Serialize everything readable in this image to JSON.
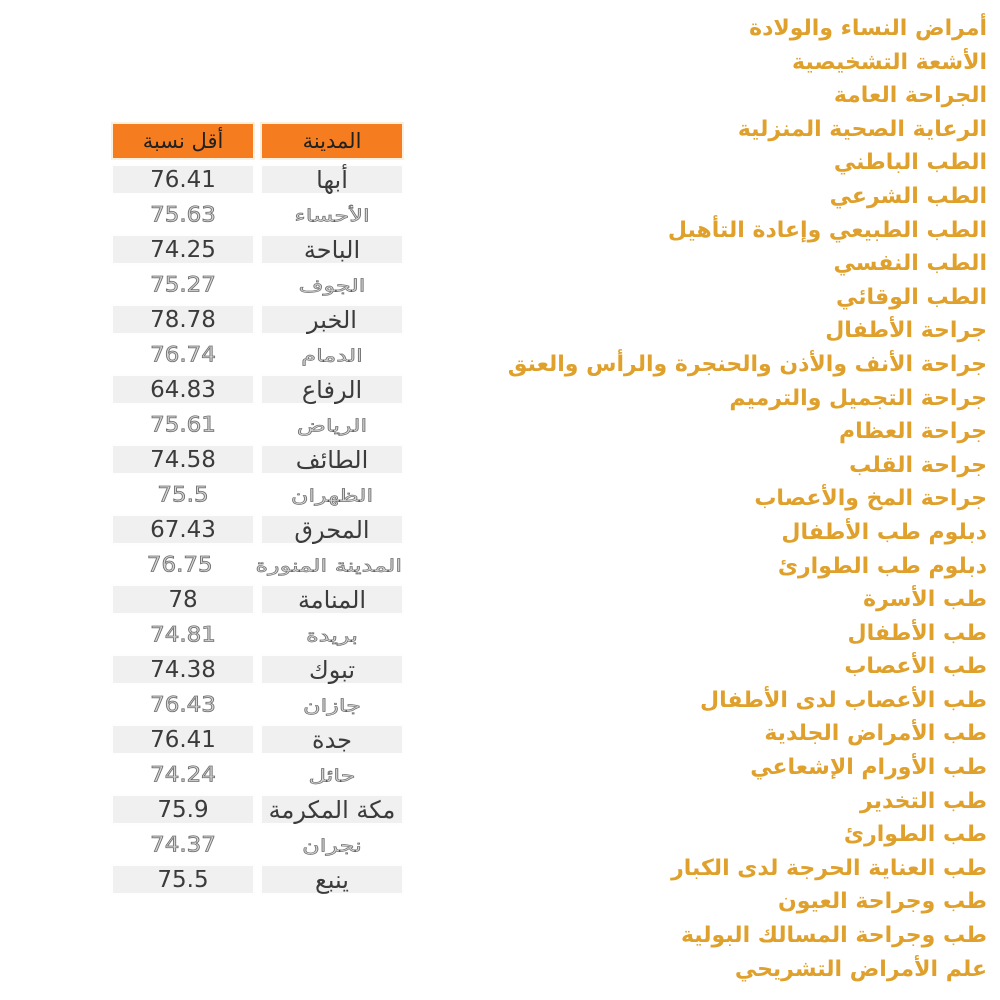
{
  "colors": {
    "header_orange": "#F57D1F",
    "header_border": "#FBEFDD",
    "row_fill": "#F0F0F0",
    "row_text": "#3B3B3B",
    "specialty_amber": "#DFA02C"
  },
  "table": {
    "headers": {
      "city": "المدينة",
      "value": "أقل نسبة"
    },
    "rows": [
      {
        "city": "أبها",
        "value": "76.41",
        "muted": false
      },
      {
        "city": "الأحساء",
        "value": "75.63",
        "muted": true
      },
      {
        "city": "الباحة",
        "value": "74.25",
        "muted": false
      },
      {
        "city": "الجوف",
        "value": "75.27",
        "muted": true
      },
      {
        "city": "الخبر",
        "value": "78.78",
        "muted": false
      },
      {
        "city": "الدمام",
        "value": "76.74",
        "muted": true
      },
      {
        "city": "الرفاع",
        "value": "64.83",
        "muted": false
      },
      {
        "city": "الرياض",
        "value": "75.61",
        "muted": true
      },
      {
        "city": "الطائف",
        "value": "74.58",
        "muted": false
      },
      {
        "city": "الظهران",
        "value": "75.5",
        "muted": true
      },
      {
        "city": "المحرق",
        "value": "67.43",
        "muted": false
      },
      {
        "city": "المدينة المنورة",
        "value": "76.75",
        "muted": true
      },
      {
        "city": "المنامة",
        "value": "78",
        "muted": false
      },
      {
        "city": "بريدة",
        "value": "74.81",
        "muted": true
      },
      {
        "city": "تبوك",
        "value": "74.38",
        "muted": false
      },
      {
        "city": "جازان",
        "value": "76.43",
        "muted": true
      },
      {
        "city": "جدة",
        "value": "76.41",
        "muted": false
      },
      {
        "city": "حائل",
        "value": "74.24",
        "muted": true
      },
      {
        "city": "مكة المكرمة",
        "value": "75.9",
        "muted": false
      },
      {
        "city": "نجران",
        "value": "74.37",
        "muted": true
      },
      {
        "city": "ينبع",
        "value": "75.5",
        "muted": false
      }
    ]
  },
  "specialties": {
    "items": [
      "أمراض النساء والولادة",
      "الأشعة التشخيصية",
      "الجراحة العامة",
      "الرعاية الصحية المنزلية",
      "الطب الباطني",
      "الطب الشرعي",
      "الطب الطبيعي وإعادة التأهيل",
      "الطب النفسي",
      "الطب الوقائي",
      "جراحة الأطفال",
      "جراحة الأنف والأذن والحنجرة والرأس والعنق",
      "جراحة التجميل والترميم",
      "جراحة العظام",
      "جراحة القلب",
      "جراحة المخ والأعصاب",
      "دبلوم طب الأطفال",
      "دبلوم طب الطوارئ",
      "طب الأسرة",
      "طب الأطفال",
      "طب الأعصاب",
      "طب الأعصاب لدى الأطفال",
      "طب الأمراض الجلدية",
      "طب الأورام الإشعاعي",
      "طب التخدير",
      "طب الطوارئ",
      "طب العناية الحرجة لدى الكبار",
      "طب وجراحة العيون",
      "طب وجراحة المسالك البولية",
      "علم الأمراض التشريحي"
    ]
  },
  "chart_data": {
    "type": "table",
    "title": "",
    "columns": [
      "المدينة",
      "أقل نسبة"
    ],
    "rows": [
      [
        "أبها",
        76.41
      ],
      [
        "الأحساء",
        75.63
      ],
      [
        "الباحة",
        74.25
      ],
      [
        "الجوف",
        75.27
      ],
      [
        "الخبر",
        78.78
      ],
      [
        "الدمام",
        76.74
      ],
      [
        "الرفاع",
        64.83
      ],
      [
        "الرياض",
        75.61
      ],
      [
        "الطائف",
        74.58
      ],
      [
        "الظهران",
        75.5
      ],
      [
        "المحرق",
        67.43
      ],
      [
        "المدينة المنورة",
        76.75
      ],
      [
        "المنامة",
        78
      ],
      [
        "بريدة",
        74.81
      ],
      [
        "تبوك",
        74.38
      ],
      [
        "جازان",
        76.43
      ],
      [
        "جدة",
        76.41
      ],
      [
        "حائل",
        74.24
      ],
      [
        "مكة المكرمة",
        75.9
      ],
      [
        "نجران",
        74.37
      ],
      [
        "ينبع",
        75.5
      ]
    ]
  }
}
